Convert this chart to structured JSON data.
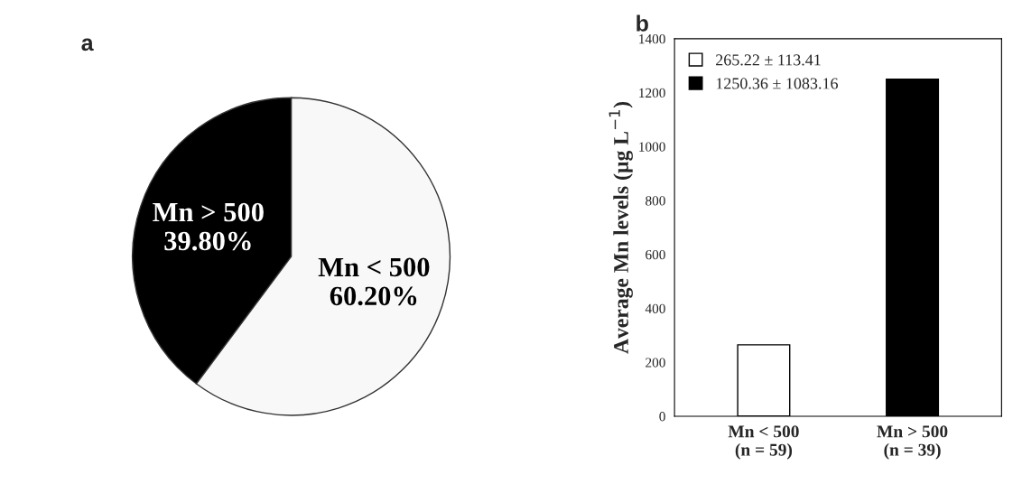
{
  "chart_data": [
    {
      "type": "pie",
      "title": "a",
      "categories": [
        "Mn > 500",
        "Mn < 500"
      ],
      "values": [
        39.8,
        60.2
      ],
      "colors": [
        "#000000",
        "#f8f8f8"
      ],
      "value_labels": [
        "39.80%",
        "60.20%"
      ]
    },
    {
      "type": "bar",
      "title": "b",
      "categories": [
        "Mn < 500\n(n = 59)",
        "Mn > 500\n(n = 39)"
      ],
      "ylabel": "Average Mn levels (µg L$^{−1}$)",
      "series": [
        {
          "name": "265.22 ± 113.41",
          "color": "#ffffff",
          "values": [
            265,
            null
          ]
        },
        {
          "name": "1250.36 ± 1083.16",
          "color": "#000000",
          "values": [
            null,
            1250
          ]
        }
      ],
      "ylim": [
        0,
        1400
      ],
      "yticks": [
        0,
        200,
        400,
        600,
        800,
        1000,
        1200,
        1400
      ],
      "grid": false,
      "legend": "top left"
    }
  ]
}
